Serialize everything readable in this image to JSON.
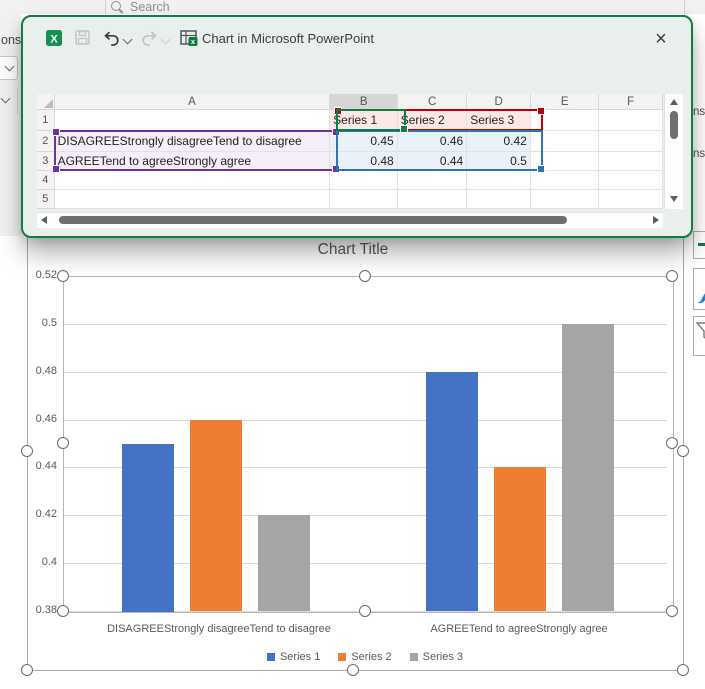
{
  "background": {
    "search_placeholder": "Search",
    "ribbon_fragment_left": "ons",
    "pane_fragment_1": "ns",
    "pane_fragment_2": "ns"
  },
  "window": {
    "title": "Chart in Microsoft PowerPoint",
    "close_glyph": "×"
  },
  "sheet": {
    "column_headers": [
      "A",
      "B",
      "C",
      "D",
      "E",
      "F"
    ],
    "selected_column": "B",
    "row_numbers": [
      "1",
      "2",
      "3",
      "4",
      "5"
    ],
    "rows": [
      [
        "",
        "Series 1",
        "Series 2",
        "Series 3",
        "",
        ""
      ],
      [
        "DISAGREEStrongly disagreeTend to disagree",
        "0.45",
        "0.46",
        "0.42",
        "",
        ""
      ],
      [
        "AGREETend to agreeStrongly agree",
        "0.48",
        "0.44",
        "0.5",
        "",
        ""
      ],
      [
        "",
        "",
        "",
        "",
        "",
        ""
      ],
      [
        "",
        "",
        "",
        "",
        "",
        ""
      ]
    ]
  },
  "chart_data": {
    "type": "bar",
    "title": "Chart Title",
    "categories": [
      "DISAGREEStrongly disagreeTend to disagree",
      "AGREETend to agreeStrongly agree"
    ],
    "series": [
      {
        "name": "Series 1",
        "values": [
          0.45,
          0.48
        ],
        "color": "#4472C4"
      },
      {
        "name": "Series 2",
        "values": [
          0.46,
          0.44
        ],
        "color": "#ED7D31"
      },
      {
        "name": "Series 3",
        "values": [
          0.42,
          0.5
        ],
        "color": "#A5A5A5"
      }
    ],
    "ylim": [
      0.38,
      0.52
    ],
    "yticks": [
      0.38,
      0.4,
      0.42,
      0.44,
      0.46,
      0.48,
      0.5,
      0.52
    ],
    "ytick_labels": [
      "0.38",
      "0.4",
      "0.42",
      "0.44",
      "0.46",
      "0.48",
      "0.5",
      "0.52"
    ],
    "grid": true,
    "legend_position": "bottom"
  },
  "colors": {
    "excel_green": "#107C41",
    "range_red": "#C00000",
    "range_purple": "#7030A0",
    "range_blue": "#2E75B6",
    "chart_text": "#595959"
  }
}
